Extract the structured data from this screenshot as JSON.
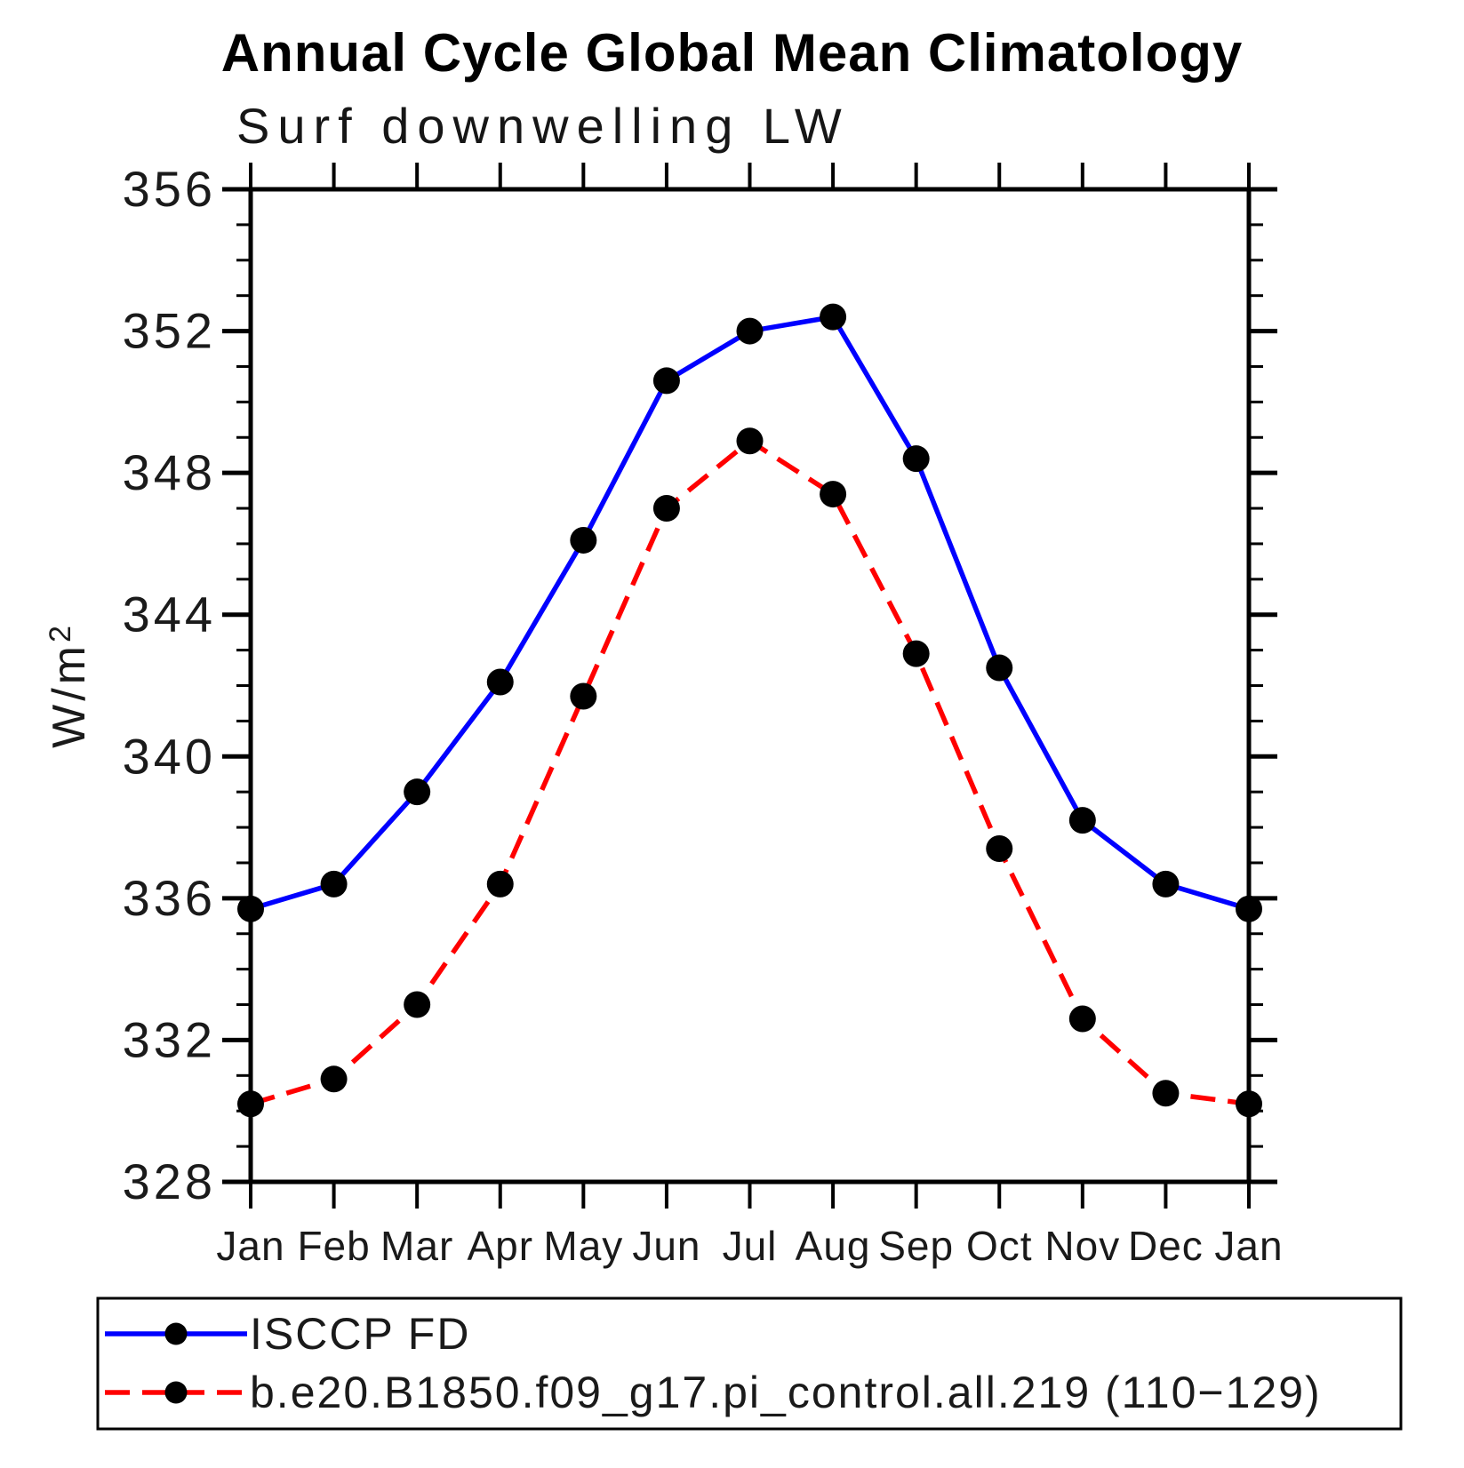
{
  "page": {
    "background": "#ffffff"
  },
  "header": {
    "title": "Annual Cycle Global Mean Climatology",
    "subtitle": "Surf downwelling LW"
  },
  "chart_data": {
    "type": "line",
    "title": "Annual Cycle Global Mean Climatology",
    "subtitle": "Surf downwelling LW",
    "xlabel": "",
    "ylabel": "W/m²",
    "categories": [
      "Jan",
      "Feb",
      "Mar",
      "Apr",
      "May",
      "Jun",
      "Jul",
      "Aug",
      "Sep",
      "Oct",
      "Nov",
      "Dec",
      "Jan"
    ],
    "ylim": [
      328,
      356
    ],
    "ytick_major_interval": 4,
    "ytick_minor_interval": 1,
    "ytick_labels": [
      "328",
      "332",
      "336",
      "340",
      "344",
      "348",
      "352",
      "356"
    ],
    "grid": false,
    "legend_position": "bottom-left-boxed",
    "axis_color": "#000000",
    "marker_color": "#000000",
    "series": [
      {
        "name": "ISCCP FD",
        "color": "#0000ff",
        "line_style": "solid",
        "marker": "filled-circle",
        "values": [
          335.7,
          336.4,
          339.0,
          342.1,
          346.1,
          350.6,
          352.0,
          352.4,
          348.4,
          342.5,
          338.2,
          336.4,
          335.7
        ]
      },
      {
        "name": "b.e20.B1850.f09_g17.pi_control.all.219 (110−129)",
        "color": "#ff0000",
        "line_style": "dashed",
        "marker": "filled-circle",
        "values": [
          330.2,
          330.9,
          333.0,
          336.4,
          341.7,
          347.0,
          348.9,
          347.4,
          342.9,
          337.4,
          332.6,
          330.5,
          330.2
        ]
      }
    ]
  }
}
